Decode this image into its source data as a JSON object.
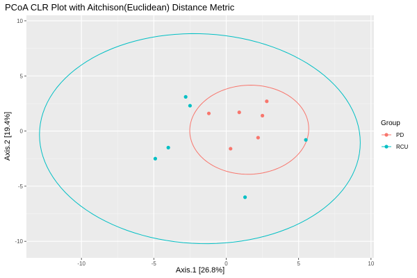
{
  "chart_data": {
    "type": "scatter",
    "title": "PCoA CLR Plot with Aitchison(Euclidean) Distance Metric",
    "xlabel": "Axis.1   [26.8%]",
    "ylabel": "Axis.2   [19.4%]",
    "xlim": [
      -13.8,
      10.2
    ],
    "ylim": [
      -11.5,
      10.5
    ],
    "xticks": [
      -10,
      -5,
      0,
      5,
      10
    ],
    "yticks": [
      10,
      5,
      0,
      -5,
      -10
    ],
    "grid": true,
    "legend_title": "Group",
    "legend_position": "right",
    "series": [
      {
        "name": "PD",
        "color": "#F8766D",
        "points": [
          {
            "x": -1.2,
            "y": 1.6
          },
          {
            "x": 0.9,
            "y": 1.7
          },
          {
            "x": 2.5,
            "y": 1.4
          },
          {
            "x": 2.8,
            "y": 2.7
          },
          {
            "x": 2.2,
            "y": -0.6
          },
          {
            "x": 0.3,
            "y": -1.6
          }
        ],
        "ellipse": {
          "cx": 1.59,
          "cy": 0.12,
          "rx": 4.13,
          "ry": 4.02,
          "rotation_deg": 26
        }
      },
      {
        "name": "RCU",
        "color": "#00BFC4",
        "points": [
          {
            "x": -2.8,
            "y": 3.1
          },
          {
            "x": -2.5,
            "y": 2.3
          },
          {
            "x": -4.0,
            "y": -1.5
          },
          {
            "x": -4.9,
            "y": -2.5
          },
          {
            "x": 1.3,
            "y": -6.0
          },
          {
            "x": 5.5,
            "y": -0.8
          }
        ],
        "ellipse": {
          "cx": -1.82,
          "cy": -0.69,
          "rx": 11.1,
          "ry": 9.5,
          "rotation_deg": -7
        }
      }
    ]
  }
}
